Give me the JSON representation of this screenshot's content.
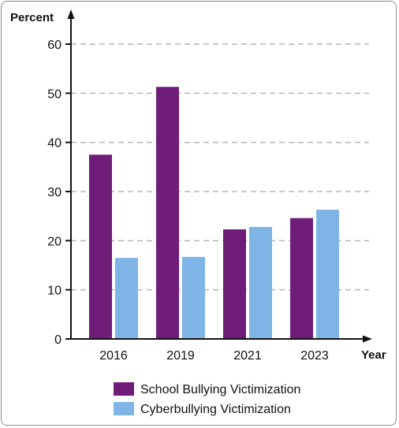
{
  "chart_data": {
    "type": "bar",
    "ylabel": "Percent",
    "xlabel": "Year",
    "categories": [
      "2016",
      "2019",
      "2021",
      "2023"
    ],
    "ylim": [
      0,
      60
    ],
    "yticks": [
      0,
      10,
      20,
      30,
      40,
      50,
      60
    ],
    "grid": "horizontal dashed",
    "legend_position": "bottom",
    "series": [
      {
        "name": "School Bullying Victimization",
        "color": "#6f1d78",
        "values": [
          37.5,
          51.3,
          22.3,
          24.6
        ]
      },
      {
        "name": "Cyberbullying Victimization",
        "color": "#7fb4e6",
        "values": [
          16.5,
          16.7,
          22.8,
          26.3
        ]
      }
    ]
  }
}
